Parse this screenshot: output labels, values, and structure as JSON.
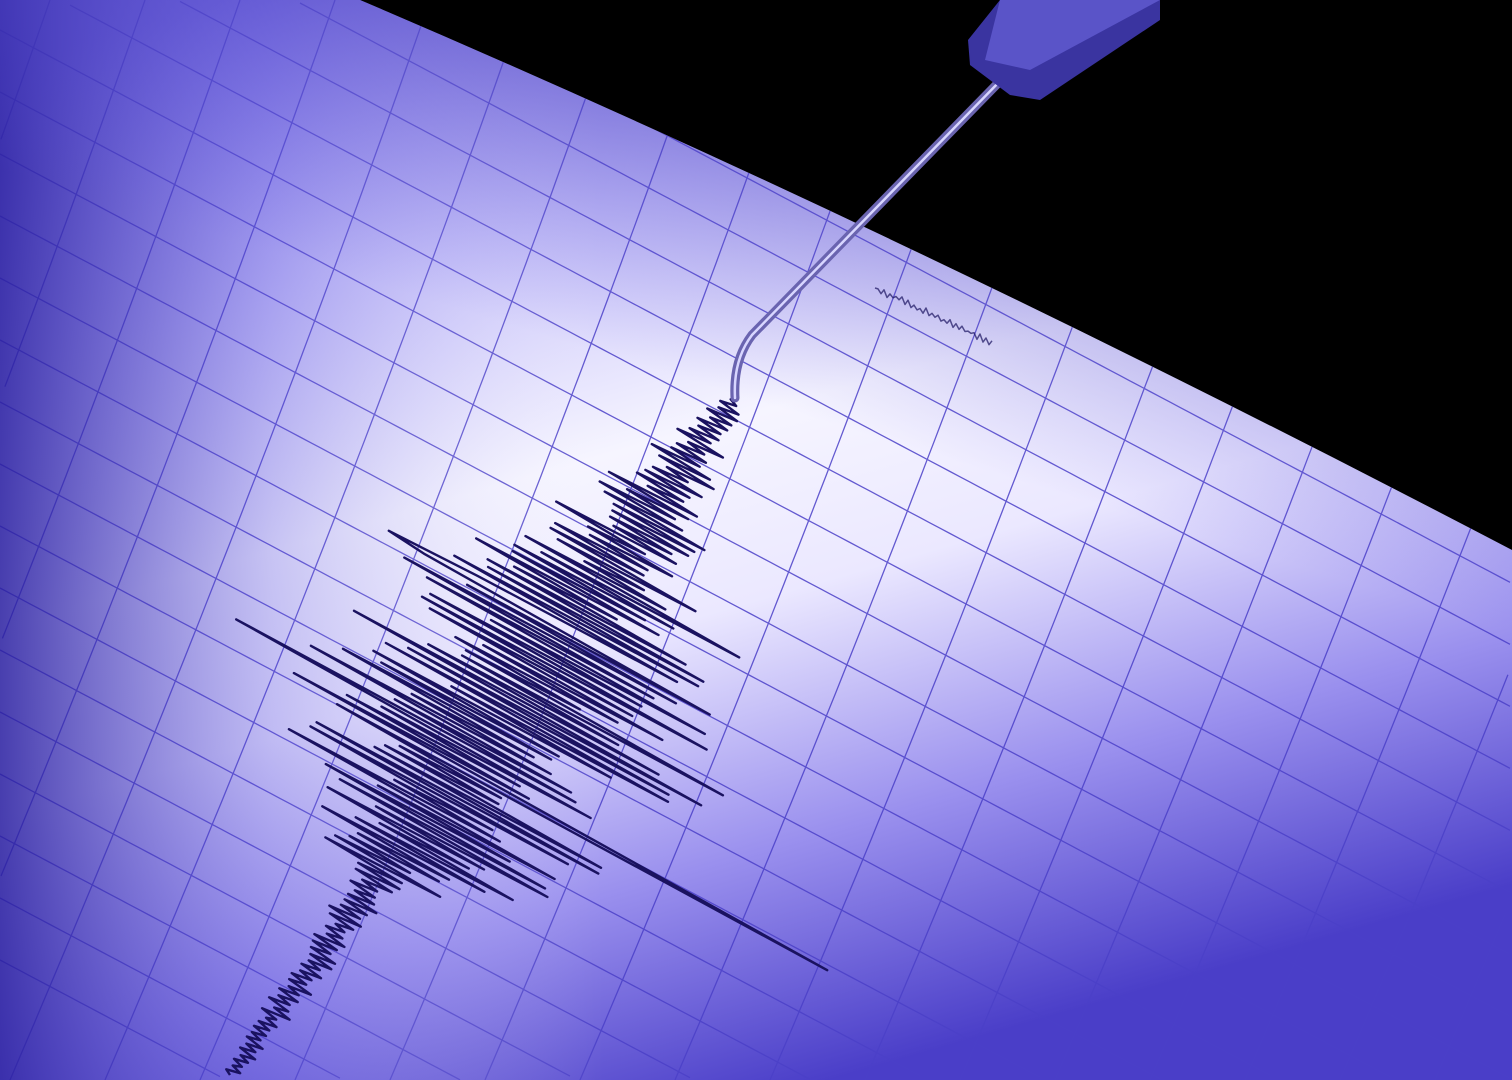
{
  "scene": {
    "subject": "seismograph",
    "colors": {
      "background": "#000000",
      "paper_light": "#f4f2ff",
      "paper_mid": "#a49cf0",
      "paper_dark": "#3b2fb8",
      "grid": "#4b40c8",
      "trace": "#1a1260",
      "needle": "#2a2470"
    },
    "icons": [
      "seismograph-drum",
      "stylus-needle",
      "seismic-trace"
    ]
  }
}
